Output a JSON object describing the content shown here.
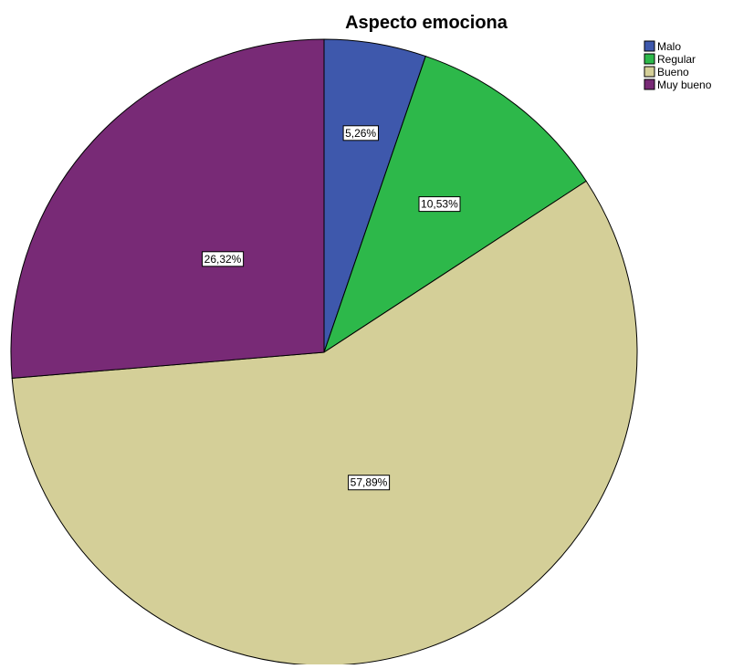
{
  "chart_data": {
    "type": "pie",
    "title": "Aspecto emociona",
    "start_angle_deg": 0,
    "direction": "clockwise",
    "legend_position": "top-right",
    "slices": [
      {
        "label": "Malo",
        "value": 5.26,
        "display": "5,26%",
        "color": "#3e58ac"
      },
      {
        "label": "Regular",
        "value": 10.53,
        "display": "10,53%",
        "color": "#2db84a"
      },
      {
        "label": "Bueno",
        "value": 57.89,
        "display": "57,89%",
        "color": "#d4cf98"
      },
      {
        "label": "Muy bueno",
        "value": 26.32,
        "display": "26,32%",
        "color": "#782a76"
      }
    ]
  }
}
